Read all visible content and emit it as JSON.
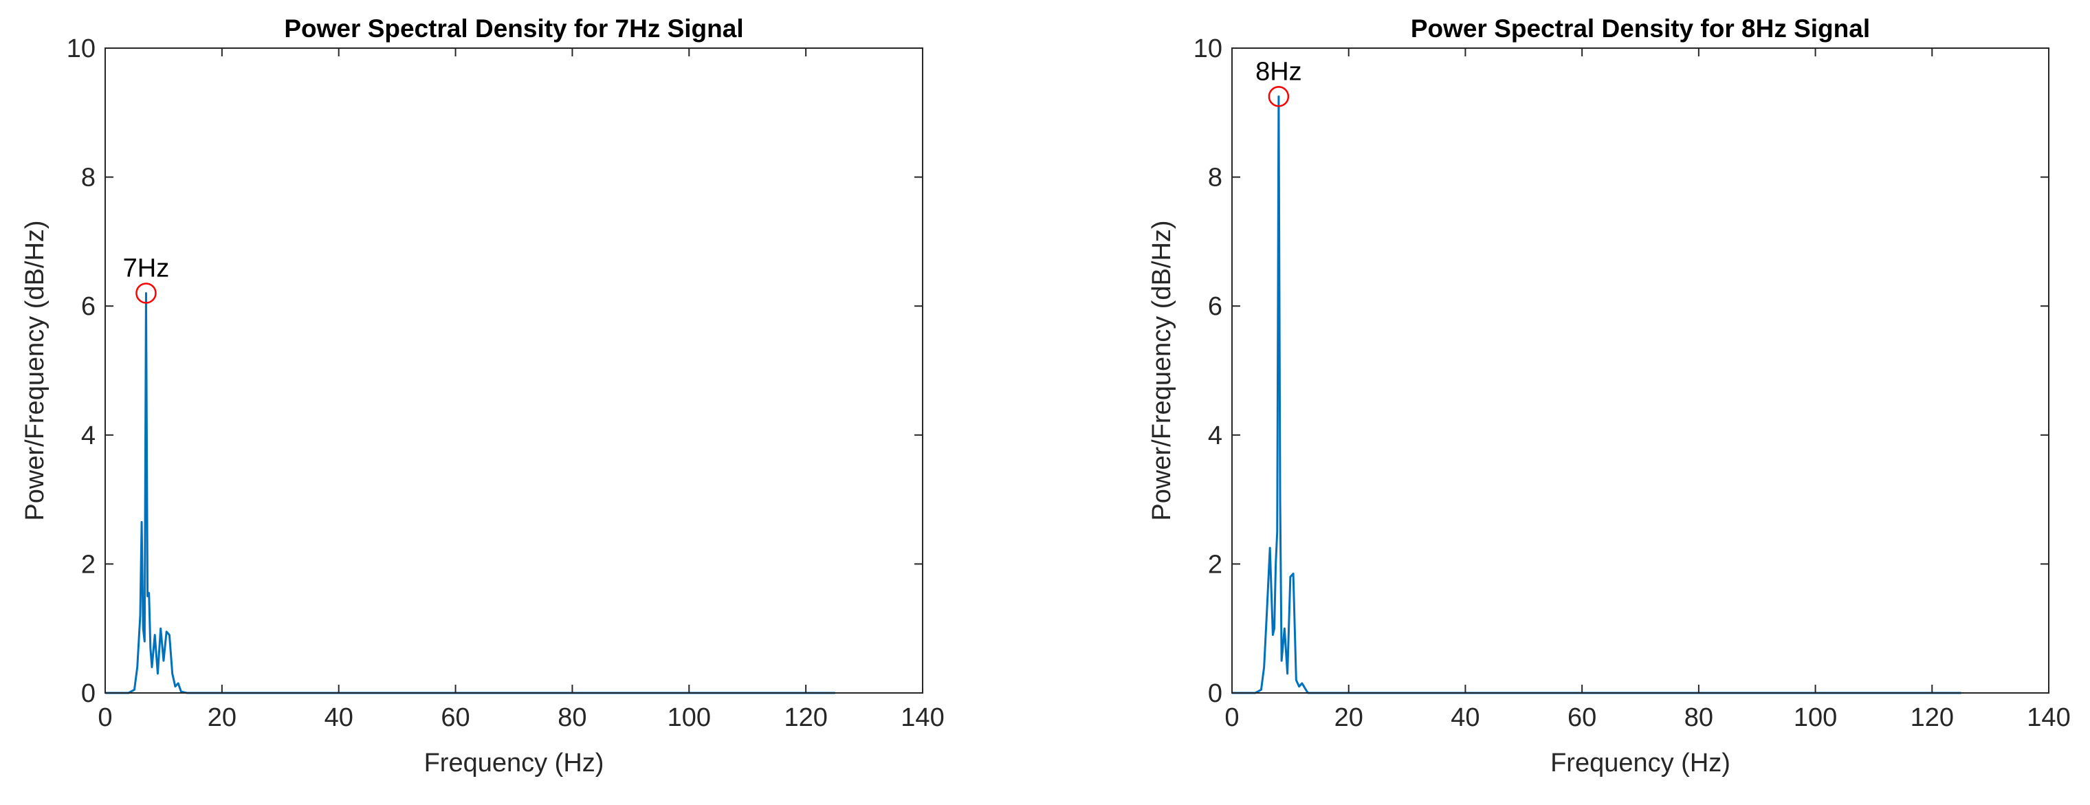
{
  "chart_data": [
    {
      "type": "line",
      "title": "Power Spectral Density for 7Hz Signal",
      "x_label": "Frequency (Hz)",
      "y_label": "Power/Frequency (dB/Hz)",
      "x": [
        0,
        4,
        5,
        5.5,
        6,
        6.25,
        6.5,
        6.75,
        7,
        7.25,
        7.5,
        7.75,
        8,
        8.5,
        9,
        9.5,
        10,
        10.5,
        11,
        11.5,
        12,
        12.5,
        13,
        14,
        125
      ],
      "series": [
        {
          "color": "#0072bd",
          "values": [
            0,
            0,
            0.05,
            0.4,
            1.2,
            2.65,
            1.0,
            0.8,
            6.2,
            1.5,
            1.55,
            0.7,
            0.4,
            0.9,
            0.3,
            1.0,
            0.5,
            0.95,
            0.9,
            0.3,
            0.1,
            0.15,
            0.02,
            0,
            0
          ]
        }
      ],
      "markers": [
        {
          "x": 7,
          "y": 6.2,
          "label": "7Hz",
          "color": "#ff0000"
        }
      ],
      "xlim": [
        0,
        140
      ],
      "ylim": [
        0,
        10
      ],
      "xticks": [
        0,
        20,
        40,
        60,
        80,
        100,
        120,
        140
      ],
      "yticks": [
        0,
        2,
        4,
        6,
        8,
        10
      ]
    },
    {
      "type": "line",
      "title": "Power Spectral Density for 8Hz Signal",
      "x_label": "Frequency (Hz)",
      "y_label": "Power/Frequency (dB/Hz)",
      "x": [
        0,
        4,
        5,
        5.5,
        6,
        6.5,
        7,
        7.25,
        7.5,
        7.75,
        8,
        8.25,
        8.5,
        9,
        9.5,
        10,
        10.5,
        11,
        11.5,
        12,
        13,
        125
      ],
      "series": [
        {
          "color": "#0072bd",
          "values": [
            0,
            0,
            0.05,
            0.4,
            1.3,
            2.25,
            0.9,
            1.0,
            2.0,
            2.5,
            9.25,
            3.0,
            0.5,
            1.0,
            0.3,
            1.8,
            1.85,
            0.2,
            0.1,
            0.15,
            0,
            0
          ]
        }
      ],
      "markers": [
        {
          "x": 8,
          "y": 9.25,
          "label": "8Hz",
          "color": "#ff0000"
        }
      ],
      "xlim": [
        0,
        140
      ],
      "ylim": [
        0,
        10
      ],
      "xticks": [
        0,
        20,
        40,
        60,
        80,
        100,
        120,
        140
      ],
      "yticks": [
        0,
        2,
        4,
        6,
        8,
        10
      ]
    }
  ]
}
